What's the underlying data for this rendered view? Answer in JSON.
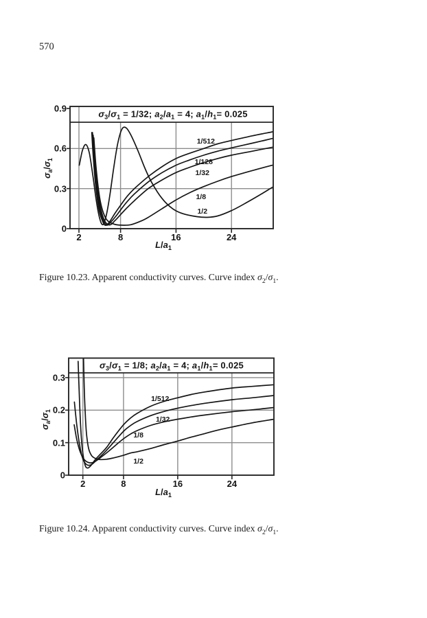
{
  "page": {
    "number": "570"
  },
  "chart_data": [
    {
      "type": "line",
      "title": "*σ*_3/*σ*_1 = 1/32;  *a*_2/*a*_1 = 4;  *a*_1/*h*_1= 0.025",
      "xlabel": "*L*/*a*_1",
      "ylabel": "*σ*_a/*σ*_1",
      "caption": "Figure 10.23.  Apparent conductivity curves.  Curve index *σ*_2/*σ*_1.",
      "curve_index_meaning": "σ2/σ1",
      "xlim": [
        0.7,
        30.1
      ],
      "ylim": [
        0,
        0.915
      ],
      "xticks": [
        2,
        8,
        16,
        24
      ],
      "yticks": [
        0,
        0.3,
        0.6,
        0.9
      ],
      "grid": true,
      "legend_position": "inline-curve-labels",
      "series": [
        {
          "name": "1/512",
          "label_pos": [
            20.3,
            0.655
          ],
          "points": [
            [
              3.85,
              0.72
            ],
            [
              4.05,
              0.55
            ],
            [
              4.4,
              0.33
            ],
            [
              4.9,
              0.14
            ],
            [
              5.5,
              0.045
            ],
            [
              5.9,
              0.025
            ],
            [
              6.4,
              0.05
            ],
            [
              7.2,
              0.115
            ],
            [
              8,
              0.175
            ],
            [
              9,
              0.245
            ],
            [
              10,
              0.3
            ],
            [
              12,
              0.39
            ],
            [
              14,
              0.465
            ],
            [
              16,
              0.525
            ],
            [
              18,
              0.565
            ],
            [
              20,
              0.6
            ],
            [
              22,
              0.635
            ],
            [
              24,
              0.66
            ],
            [
              27,
              0.695
            ],
            [
              29.9,
              0.725
            ]
          ]
        },
        {
          "name": "1/128",
          "label_pos": [
            20.0,
            0.5
          ],
          "points": [
            [
              3.95,
              0.72
            ],
            [
              4.2,
              0.5
            ],
            [
              4.7,
              0.25
            ],
            [
              5.3,
              0.09
            ],
            [
              6,
              0.027
            ],
            [
              6.7,
              0.055
            ],
            [
              7.5,
              0.105
            ],
            [
              8,
              0.14
            ],
            [
              9,
              0.205
            ],
            [
              10,
              0.26
            ],
            [
              12,
              0.35
            ],
            [
              14,
              0.42
            ],
            [
              16,
              0.475
            ],
            [
              18,
              0.515
            ],
            [
              20,
              0.55
            ],
            [
              22,
              0.58
            ],
            [
              24,
              0.605
            ],
            [
              27,
              0.64
            ],
            [
              29.9,
              0.675
            ]
          ]
        },
        {
          "name": "1/32",
          "label_pos": [
            19.8,
            0.415
          ],
          "points": [
            [
              4.05,
              0.7
            ],
            [
              4.35,
              0.48
            ],
            [
              4.9,
              0.22
            ],
            [
              5.6,
              0.07
            ],
            [
              6.4,
              0.028
            ],
            [
              7.2,
              0.06
            ],
            [
              8,
              0.105
            ],
            [
              9,
              0.16
            ],
            [
              10,
              0.21
            ],
            [
              12,
              0.3
            ],
            [
              14,
              0.365
            ],
            [
              16,
              0.42
            ],
            [
              18,
              0.46
            ],
            [
              20,
              0.495
            ],
            [
              22,
              0.525
            ],
            [
              24,
              0.55
            ],
            [
              27,
              0.58
            ],
            [
              29.9,
              0.61
            ]
          ]
        },
        {
          "name": "1/8",
          "label_pos": [
            19.6,
            0.235
          ],
          "points": [
            [
              4.15,
              0.68
            ],
            [
              4.5,
              0.44
            ],
            [
              5.1,
              0.2
            ],
            [
              5.9,
              0.075
            ],
            [
              7,
              0.035
            ],
            [
              8.2,
              0.026
            ],
            [
              9.5,
              0.03
            ],
            [
              11,
              0.058
            ],
            [
              12,
              0.085
            ],
            [
              14,
              0.15
            ],
            [
              16,
              0.215
            ],
            [
              18,
              0.27
            ],
            [
              20,
              0.315
            ],
            [
              22,
              0.355
            ],
            [
              24,
              0.39
            ],
            [
              27,
              0.435
            ],
            [
              29.9,
              0.475
            ]
          ]
        },
        {
          "name": "1/2",
          "label_pos": [
            19.8,
            0.128
          ],
          "points": [
            [
              2.05,
              0.475
            ],
            [
              2.5,
              0.585
            ],
            [
              3,
              0.63
            ],
            [
              3.5,
              0.565
            ],
            [
              4,
              0.4
            ],
            [
              4.5,
              0.21
            ],
            [
              5,
              0.075
            ],
            [
              5.45,
              0.03
            ],
            [
              5.9,
              0.09
            ],
            [
              6.4,
              0.23
            ],
            [
              7,
              0.45
            ],
            [
              7.6,
              0.64
            ],
            [
              8.2,
              0.745
            ],
            [
              8.8,
              0.755
            ],
            [
              9.5,
              0.7
            ],
            [
              10.5,
              0.585
            ],
            [
              11.5,
              0.455
            ],
            [
              12.5,
              0.345
            ],
            [
              14,
              0.225
            ],
            [
              15.5,
              0.15
            ],
            [
              17,
              0.112
            ],
            [
              19,
              0.09
            ],
            [
              20.5,
              0.085
            ],
            [
              22,
              0.095
            ],
            [
              24,
              0.135
            ],
            [
              26,
              0.19
            ],
            [
              28,
              0.25
            ],
            [
              29.9,
              0.31
            ]
          ]
        }
      ]
    },
    {
      "type": "line",
      "title": "*σ*_3/*σ*_1 = 1/8;  *a*_2/*a*_1 = 4;  *a*_1/*h*_1= 0.025",
      "xlabel": "*L*/*a*_1",
      "ylabel": "*σ*_a/*σ*_1",
      "caption": "Figure 10.24.  Apparent conductivity curves.  Curve index *σ*_2/*σ*_1.",
      "curve_index_meaning": "σ2/σ1",
      "xlim": [
        0,
        30.3
      ],
      "ylim": [
        0,
        0.36
      ],
      "xticks": [
        2,
        8,
        16,
        24
      ],
      "yticks": [
        0,
        0.1,
        0.2,
        0.3
      ],
      "grid": true,
      "legend_position": "inline-curve-labels",
      "series": [
        {
          "name": "1/512",
          "label_pos": [
            13.4,
            0.235
          ],
          "points": [
            [
              1.3,
              0.35
            ],
            [
              1.45,
              0.26
            ],
            [
              1.65,
              0.16
            ],
            [
              1.9,
              0.085
            ],
            [
              2.3,
              0.033
            ],
            [
              2.7,
              0.022
            ],
            [
              3.2,
              0.03
            ],
            [
              3.8,
              0.047
            ],
            [
              4.5,
              0.063
            ],
            [
              5.5,
              0.085
            ],
            [
              6.5,
              0.115
            ],
            [
              8,
              0.155
            ],
            [
              9,
              0.175
            ],
            [
              10,
              0.19
            ],
            [
              12,
              0.212
            ],
            [
              14,
              0.227
            ],
            [
              16,
              0.238
            ],
            [
              18,
              0.248
            ],
            [
              20,
              0.256
            ],
            [
              24,
              0.268
            ],
            [
              27,
              0.273
            ],
            [
              30.2,
              0.278
            ]
          ]
        },
        {
          "name": "1/32",
          "label_pos": [
            13.8,
            0.17
          ],
          "points": [
            [
              0.75,
              0.225
            ],
            [
              1.1,
              0.155
            ],
            [
              1.5,
              0.095
            ],
            [
              2,
              0.05
            ],
            [
              2.6,
              0.032
            ],
            [
              3.3,
              0.033
            ],
            [
              4.2,
              0.05
            ],
            [
              5.2,
              0.07
            ],
            [
              6.5,
              0.1
            ],
            [
              8,
              0.135
            ],
            [
              9,
              0.152
            ],
            [
              10,
              0.165
            ],
            [
              12,
              0.183
            ],
            [
              14,
              0.196
            ],
            [
              16,
              0.206
            ],
            [
              18,
              0.214
            ],
            [
              20,
              0.221
            ],
            [
              24,
              0.232
            ],
            [
              27,
              0.238
            ],
            [
              30.2,
              0.245
            ]
          ]
        },
        {
          "name": "1/8",
          "label_pos": [
            10.2,
            0.122
          ],
          "points": [
            [
              0.72,
              0.155
            ],
            [
              1.1,
              0.11
            ],
            [
              1.6,
              0.072
            ],
            [
              2.2,
              0.048
            ],
            [
              3,
              0.038
            ],
            [
              3.8,
              0.042
            ],
            [
              4.8,
              0.057
            ],
            [
              6,
              0.077
            ],
            [
              7,
              0.095
            ],
            [
              8,
              0.112
            ],
            [
              9,
              0.126
            ],
            [
              10,
              0.137
            ],
            [
              12,
              0.153
            ],
            [
              14,
              0.164
            ],
            [
              16,
              0.172
            ],
            [
              18,
              0.179
            ],
            [
              20,
              0.185
            ],
            [
              24,
              0.195
            ],
            [
              27,
              0.201
            ],
            [
              30.2,
              0.208
            ]
          ]
        },
        {
          "name": "1/2",
          "label_pos": [
            10.2,
            0.042
          ],
          "points": [
            [
              2.1,
              0.358
            ],
            [
              2.2,
              0.27
            ],
            [
              2.35,
              0.19
            ],
            [
              2.55,
              0.125
            ],
            [
              2.85,
              0.082
            ],
            [
              3.3,
              0.06
            ],
            [
              3.9,
              0.051
            ],
            [
              4.6,
              0.048
            ],
            [
              5.5,
              0.049
            ],
            [
              6.5,
              0.053
            ],
            [
              8,
              0.061
            ],
            [
              9,
              0.068
            ],
            [
              10,
              0.072
            ],
            [
              12,
              0.082
            ],
            [
              14,
              0.094
            ],
            [
              16,
              0.105
            ],
            [
              18,
              0.117
            ],
            [
              20,
              0.128
            ],
            [
              22,
              0.139
            ],
            [
              24,
              0.148
            ],
            [
              27,
              0.161
            ],
            [
              30.2,
              0.172
            ]
          ]
        }
      ]
    }
  ],
  "colors": {
    "curve": "#151515",
    "grid": "#8c8c8c",
    "border": "#262626",
    "text": "#141414",
    "paper": "#ffffff"
  }
}
